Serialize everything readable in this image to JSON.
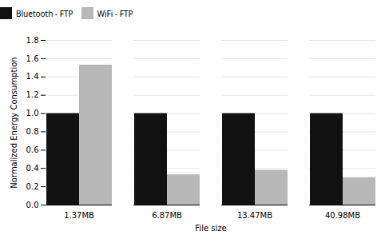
{
  "chart_data": {
    "type": "bar",
    "categories": [
      "1.37MB",
      "6.87MB",
      "13.47MB",
      "40.98MB"
    ],
    "series": [
      {
        "name": "Bluetooth - FTP",
        "color": "#111111",
        "values": [
          1.0,
          1.0,
          1.0,
          1.0
        ]
      },
      {
        "name": "WiFi - FTP",
        "color": "#b8b8b8",
        "values": [
          1.53,
          0.33,
          0.38,
          0.3
        ]
      }
    ],
    "xlabel": "File size",
    "ylabel": "Normalized Energy Consumption",
    "ylim": [
      0,
      1.8
    ],
    "yticks": [
      {
        "value": 0,
        "label": "0.0"
      },
      0.2,
      0.4,
      0.6,
      0.8,
      {
        "value": 1.0,
        "label": "1.0"
      },
      1.2,
      1.4,
      1.6,
      1.8
    ],
    "grid": true,
    "legend": "top"
  }
}
